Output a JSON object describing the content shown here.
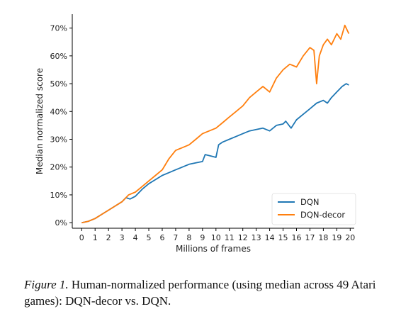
{
  "chart_data": {
    "type": "line",
    "title": "",
    "xlabel": "Millions of frames",
    "ylabel": "Median normalized score",
    "xlim": [
      -0.7,
      20.3
    ],
    "ylim": [
      -0.02,
      0.75
    ],
    "xticks": [
      0,
      1,
      2,
      3,
      4,
      5,
      6,
      7,
      8,
      9,
      10,
      11,
      12,
      13,
      14,
      15,
      16,
      17,
      18,
      19,
      20
    ],
    "xtick_labels": [
      "0",
      "1",
      "2",
      "3",
      "4",
      "5",
      "6",
      "7",
      "8",
      "9",
      "10",
      "11",
      "12",
      "13",
      "14",
      "15",
      "16",
      "17",
      "18",
      "19",
      "20"
    ],
    "yticks": [
      0,
      0.1,
      0.2,
      0.3,
      0.4,
      0.5,
      0.6,
      0.7
    ],
    "ytick_labels": [
      "0%",
      "10%",
      "20%",
      "30%",
      "40%",
      "50%",
      "60%",
      "70%"
    ],
    "grid": false,
    "legend_position": "lower-right",
    "series": [
      {
        "name": "DQN",
        "color": "#1f77b4",
        "points": [
          [
            0,
            0
          ],
          [
            0.5,
            0.005
          ],
          [
            1,
            0.015
          ],
          [
            1.5,
            0.03
          ],
          [
            2,
            0.045
          ],
          [
            2.5,
            0.06
          ],
          [
            3,
            0.075
          ],
          [
            3.3,
            0.09
          ],
          [
            3.6,
            0.085
          ],
          [
            4,
            0.095
          ],
          [
            4.5,
            0.12
          ],
          [
            5,
            0.14
          ],
          [
            5.5,
            0.155
          ],
          [
            6,
            0.17
          ],
          [
            6.5,
            0.18
          ],
          [
            7,
            0.19
          ],
          [
            7.5,
            0.2
          ],
          [
            8,
            0.21
          ],
          [
            8.5,
            0.215
          ],
          [
            9,
            0.22
          ],
          [
            9.2,
            0.245
          ],
          [
            9.6,
            0.24
          ],
          [
            10,
            0.235
          ],
          [
            10.2,
            0.28
          ],
          [
            10.5,
            0.29
          ],
          [
            11,
            0.3
          ],
          [
            11.5,
            0.31
          ],
          [
            12,
            0.32
          ],
          [
            12.5,
            0.33
          ],
          [
            13,
            0.335
          ],
          [
            13.5,
            0.34
          ],
          [
            14,
            0.33
          ],
          [
            14.5,
            0.35
          ],
          [
            15,
            0.355
          ],
          [
            15.2,
            0.365
          ],
          [
            15.6,
            0.34
          ],
          [
            16,
            0.37
          ],
          [
            16.5,
            0.39
          ],
          [
            17,
            0.41
          ],
          [
            17.5,
            0.43
          ],
          [
            18,
            0.44
          ],
          [
            18.3,
            0.43
          ],
          [
            18.6,
            0.45
          ],
          [
            19,
            0.47
          ],
          [
            19.4,
            0.49
          ],
          [
            19.7,
            0.5
          ],
          [
            19.9,
            0.495
          ]
        ]
      },
      {
        "name": "DQN-decor",
        "color": "#ff7f0e",
        "points": [
          [
            0,
            0
          ],
          [
            0.5,
            0.005
          ],
          [
            1,
            0.015
          ],
          [
            1.5,
            0.03
          ],
          [
            2,
            0.045
          ],
          [
            2.5,
            0.06
          ],
          [
            3,
            0.075
          ],
          [
            3.5,
            0.1
          ],
          [
            4,
            0.11
          ],
          [
            4.5,
            0.13
          ],
          [
            5,
            0.15
          ],
          [
            5.5,
            0.17
          ],
          [
            6,
            0.19
          ],
          [
            6.5,
            0.23
          ],
          [
            7,
            0.26
          ],
          [
            7.5,
            0.27
          ],
          [
            8,
            0.28
          ],
          [
            8.5,
            0.3
          ],
          [
            9,
            0.32
          ],
          [
            9.5,
            0.33
          ],
          [
            10,
            0.34
          ],
          [
            10.5,
            0.36
          ],
          [
            11,
            0.38
          ],
          [
            11.5,
            0.4
          ],
          [
            12,
            0.42
          ],
          [
            12.5,
            0.45
          ],
          [
            13,
            0.47
          ],
          [
            13.5,
            0.49
          ],
          [
            14,
            0.47
          ],
          [
            14.5,
            0.52
          ],
          [
            15,
            0.55
          ],
          [
            15.5,
            0.57
          ],
          [
            16,
            0.56
          ],
          [
            16.5,
            0.6
          ],
          [
            17,
            0.63
          ],
          [
            17.3,
            0.62
          ],
          [
            17.5,
            0.5
          ],
          [
            17.7,
            0.6
          ],
          [
            18,
            0.64
          ],
          [
            18.3,
            0.66
          ],
          [
            18.6,
            0.64
          ],
          [
            19,
            0.68
          ],
          [
            19.3,
            0.66
          ],
          [
            19.6,
            0.71
          ],
          [
            19.9,
            0.68
          ]
        ]
      }
    ]
  },
  "caption": {
    "lead": "Figure 1.",
    "text": " Human-normalized performance (using median across 49 Atari games): DQN-decor vs. DQN."
  }
}
